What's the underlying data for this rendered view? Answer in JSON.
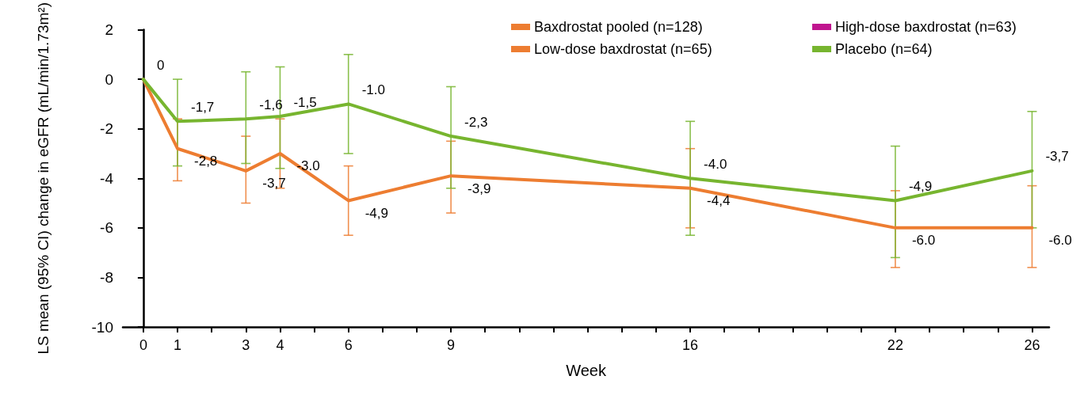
{
  "chart_data": {
    "type": "line",
    "xlabel": "Week",
    "ylabel": "LS mean (95% CI) change in eGFR (mL/min/1.73m²)",
    "x": [
      0,
      1,
      3,
      4,
      6,
      9,
      16,
      22,
      26
    ],
    "xlim": [
      -0.6,
      26.5
    ],
    "xticks": [
      0,
      1,
      {
        "value": 2,
        "label": null
      },
      3,
      4,
      {
        "value": 5,
        "label": null
      },
      6,
      {
        "value": 7,
        "label": null
      },
      {
        "value": 8,
        "label": null
      },
      9,
      {
        "value": 10,
        "label": null
      },
      {
        "value": 11,
        "label": null
      },
      {
        "value": 12,
        "label": null
      },
      {
        "value": 13,
        "label": null
      },
      {
        "value": 14,
        "label": null
      },
      {
        "value": 15,
        "label": null
      },
      16,
      {
        "value": 17,
        "label": null
      },
      {
        "value": 18,
        "label": null
      },
      {
        "value": 19,
        "label": null
      },
      {
        "value": 20,
        "label": null
      },
      {
        "value": 21,
        "label": null
      },
      22,
      {
        "value": 23,
        "label": null
      },
      {
        "value": 24,
        "label": null
      },
      {
        "value": 25,
        "label": null
      },
      26
    ],
    "ylim": [
      -10,
      2
    ],
    "yticks": [
      -10,
      -8,
      -6,
      -4,
      -2,
      0,
      2
    ],
    "grid": false,
    "legend": "top right",
    "marker": "none",
    "line_style": "solid",
    "series": [
      {
        "name": "Baxdrostat pooled (n=128)",
        "color": "#ed7d31",
        "values": [
          0,
          -2.8,
          -3.7,
          -3.0,
          -4.9,
          -3.9,
          -4.4,
          -6.0,
          -6.0
        ],
        "value_labels": [
          null,
          "-2,8",
          "-3,7",
          "-3.0",
          "-4,9",
          "-3,9",
          "-4,4",
          "-6.0",
          "-6.0"
        ],
        "errors": [
          null,
          [
            -4.1,
            -1.6
          ],
          [
            -5.0,
            -2.3
          ],
          [
            -4.4,
            -1.6
          ],
          [
            -6.3,
            -3.5
          ],
          [
            -5.4,
            -2.5
          ],
          [
            -6.0,
            -2.8
          ],
          [
            -7.6,
            -4.5
          ],
          [
            -7.6,
            -4.3
          ]
        ]
      },
      {
        "name": "Low-dose baxdrostat (n=65)",
        "color": "#ed7d31",
        "values": [
          null,
          null,
          null,
          null,
          null,
          null,
          null,
          null,
          null
        ]
      },
      {
        "name": "High-dose baxdrostat (n=63)",
        "color": "#c0158f",
        "values": [
          null,
          null,
          null,
          null,
          null,
          null,
          null,
          null,
          null
        ]
      },
      {
        "name": "Placebo (n=64)",
        "color": "#77b52f",
        "values": [
          0,
          -1.7,
          -1.6,
          -1.5,
          -1.0,
          -2.3,
          -4.0,
          -4.9,
          -3.7
        ],
        "value_labels": [
          "0",
          "-1,7",
          "-1,6",
          "-1,5",
          "-1.0",
          "-2,3",
          "-4.0",
          "-4,9",
          "-3,7"
        ],
        "errors": [
          null,
          [
            -3.5,
            0
          ],
          [
            -3.4,
            0.3
          ],
          [
            -3.6,
            0.5
          ],
          [
            -3.0,
            1.0
          ],
          [
            -4.4,
            -0.3
          ],
          [
            -6.3,
            -1.7
          ],
          [
            -7.2,
            -2.7
          ],
          [
            -6.0,
            -1.3
          ]
        ]
      }
    ]
  }
}
